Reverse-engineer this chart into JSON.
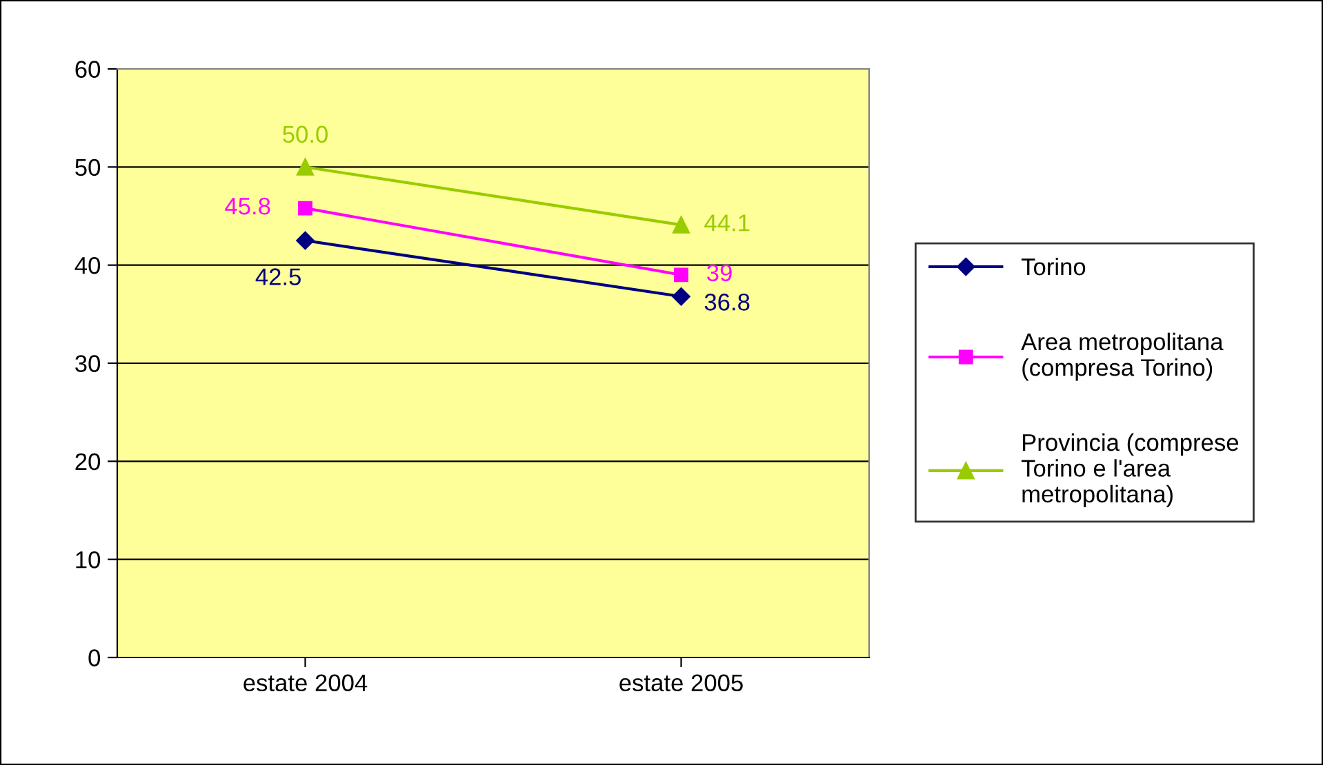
{
  "chart_data": {
    "type": "line",
    "categories": [
      "estate 2004",
      "estate 2005"
    ],
    "series": [
      {
        "name": "Torino",
        "color": "#000080",
        "marker": "diamond",
        "values": [
          42.5,
          36.8
        ],
        "value_labels": [
          "42.5",
          "36.8"
        ]
      },
      {
        "name": "Area metropolitana\n(compresa Torino)",
        "color": "#ff00ff",
        "marker": "square",
        "values": [
          45.8,
          39
        ],
        "value_labels": [
          "45.8",
          "39"
        ]
      },
      {
        "name": "Provincia (comprese\nTorino e l'area\nmetropolitana)",
        "color": "#99cc00",
        "marker": "triangle",
        "values": [
          50.0,
          44.1
        ],
        "value_labels": [
          "50.0",
          "44.1"
        ]
      }
    ],
    "ylim": [
      0,
      60
    ],
    "yticks": [
      0,
      10,
      20,
      30,
      40,
      50,
      60
    ],
    "grid": "y",
    "legend": "right",
    "line_style": "solid"
  }
}
